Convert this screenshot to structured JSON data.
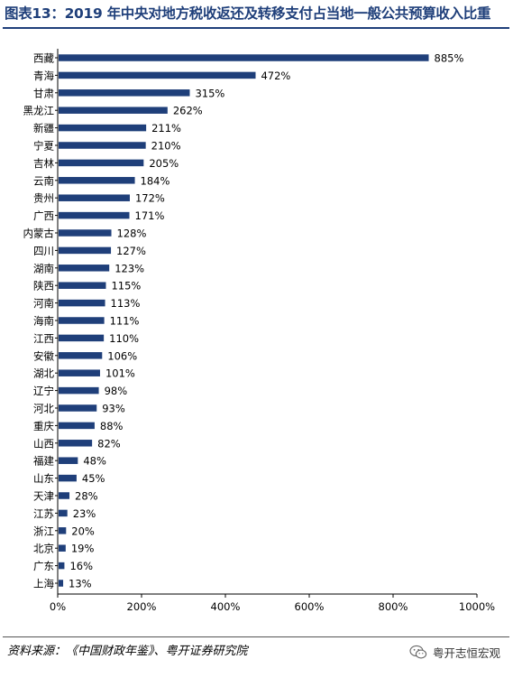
{
  "title": "图表13：2019 年中央对地方税收返还及转移支付占当地一般公共预算收入比重",
  "source": "资料来源：《中国财政年鉴》、粤开证券研究院",
  "watermark": "粤开志恒宏观",
  "icons": {
    "wechat": "wechat-icon"
  },
  "colors": {
    "bar": "#1f3f7a",
    "title": "#1f3f7a"
  },
  "chart_data": {
    "type": "bar",
    "orientation": "horizontal",
    "categories": [
      "西藏",
      "青海",
      "甘肃",
      "黑龙江",
      "新疆",
      "宁夏",
      "吉林",
      "云南",
      "贵州",
      "广西",
      "内蒙古",
      "四川",
      "湖南",
      "陕西",
      "河南",
      "海南",
      "江西",
      "安徽",
      "湖北",
      "辽宁",
      "河北",
      "重庆",
      "山西",
      "福建",
      "山东",
      "天津",
      "江苏",
      "浙江",
      "北京",
      "广东",
      "上海"
    ],
    "values": [
      885,
      472,
      315,
      262,
      211,
      210,
      205,
      184,
      172,
      171,
      128,
      127,
      123,
      115,
      113,
      111,
      110,
      106,
      101,
      98,
      93,
      88,
      82,
      48,
      45,
      28,
      23,
      20,
      19,
      16,
      13
    ],
    "value_labels": [
      "885%",
      "472%",
      "315%",
      "262%",
      "211%",
      "210%",
      "205%",
      "184%",
      "172%",
      "171%",
      "128%",
      "127%",
      "123%",
      "115%",
      "113%",
      "111%",
      "110%",
      "106%",
      "101%",
      "98%",
      "93%",
      "88%",
      "82%",
      "48%",
      "45%",
      "28%",
      "23%",
      "20%",
      "19%",
      "16%",
      "13%"
    ],
    "x_ticks": [
      "0%",
      "200%",
      "400%",
      "600%",
      "800%",
      "1000%"
    ],
    "xlim": [
      0,
      1000
    ],
    "unit": "%",
    "grid": false,
    "legend": "none"
  }
}
